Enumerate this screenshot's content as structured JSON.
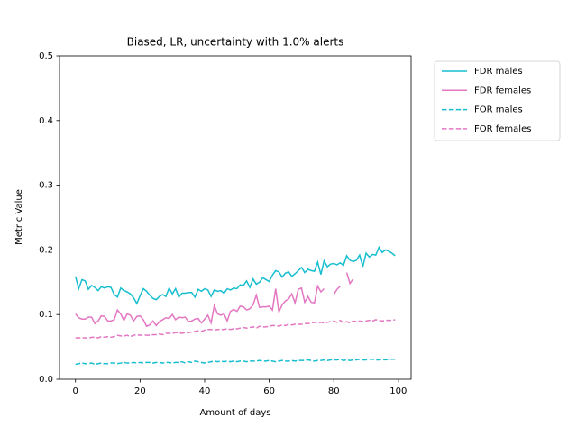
{
  "chart_data": {
    "type": "line",
    "title": "Biased, LR, uncertainty with 1.0% alerts",
    "x_label": "Amount of days",
    "y_label": "Metric Value",
    "x": [
      0,
      1,
      2,
      3,
      4,
      5,
      6,
      7,
      8,
      9,
      10,
      11,
      12,
      13,
      14,
      15,
      16,
      17,
      18,
      19,
      20,
      21,
      22,
      23,
      24,
      25,
      26,
      27,
      28,
      29,
      30,
      31,
      32,
      33,
      34,
      35,
      36,
      37,
      38,
      39,
      40,
      41,
      42,
      43,
      44,
      45,
      46,
      47,
      48,
      49,
      50,
      51,
      52,
      53,
      54,
      55,
      56,
      57,
      58,
      59,
      60,
      61,
      62,
      63,
      64,
      65,
      66,
      67,
      68,
      69,
      70,
      71,
      72,
      73,
      74,
      75,
      76,
      77,
      78,
      79,
      80,
      81,
      82,
      83,
      84,
      85,
      86,
      87,
      88,
      89,
      90,
      91,
      92,
      93,
      94,
      95,
      96,
      97,
      98,
      99
    ],
    "series": [
      {
        "name": "FDR males",
        "color": "#17becf",
        "linestyle": "solid",
        "values": [
          0.159,
          0.14,
          0.154,
          0.152,
          0.139,
          0.145,
          0.142,
          0.137,
          0.143,
          0.141,
          0.143,
          0.142,
          0.131,
          0.127,
          0.141,
          0.137,
          0.135,
          0.132,
          0.126,
          0.117,
          0.129,
          0.14,
          0.136,
          0.13,
          0.125,
          0.123,
          0.128,
          0.131,
          0.128,
          0.141,
          0.132,
          0.14,
          0.127,
          0.133,
          0.133,
          0.134,
          0.134,
          0.127,
          0.139,
          0.136,
          0.14,
          0.138,
          0.128,
          0.138,
          0.136,
          0.137,
          0.133,
          0.14,
          0.138,
          0.141,
          0.14,
          0.146,
          0.145,
          0.152,
          0.142,
          0.155,
          0.147,
          0.15,
          0.157,
          0.154,
          0.151,
          0.161,
          0.168,
          0.166,
          0.158,
          0.164,
          0.166,
          0.159,
          0.163,
          0.168,
          0.173,
          0.165,
          0.17,
          0.168,
          0.167,
          0.181,
          0.162,
          0.183,
          0.174,
          0.178,
          0.179,
          0.177,
          0.18,
          0.176,
          0.191,
          0.184,
          0.182,
          0.184,
          0.192,
          0.174,
          0.195,
          0.189,
          0.193,
          0.192,
          0.204,
          0.196,
          0.2,
          0.198,
          0.195,
          0.191
        ]
      },
      {
        "name": "FDR females",
        "color": "#e377c2",
        "linestyle": "solid",
        "values": [
          0.101,
          0.095,
          0.093,
          0.093,
          0.096,
          0.096,
          0.086,
          0.09,
          0.098,
          0.097,
          0.09,
          0.09,
          0.092,
          0.107,
          0.101,
          0.091,
          0.101,
          0.099,
          0.09,
          0.097,
          0.098,
          0.092,
          0.082,
          0.084,
          0.09,
          0.083,
          0.089,
          0.092,
          0.095,
          0.094,
          0.1,
          0.092,
          0.096,
          0.095,
          0.096,
          0.089,
          0.09,
          0.093,
          0.094,
          0.087,
          0.093,
          0.099,
          0.087,
          0.114,
          0.101,
          0.099,
          0.101,
          0.09,
          0.105,
          0.108,
          0.105,
          0.113,
          0.112,
          0.107,
          0.109,
          0.115,
          0.13,
          0.111,
          0.112,
          0.112,
          0.113,
          0.107,
          0.14,
          0.104,
          0.115,
          0.121,
          0.124,
          0.132,
          0.118,
          0.139,
          0.141,
          0.119,
          0.128,
          0.119,
          0.118,
          0.144,
          0.135,
          0.14,
          null,
          null,
          0.131,
          0.139,
          0.144,
          null,
          0.165,
          0.148,
          0.155,
          null,
          null,
          null,
          null,
          null,
          null,
          null,
          null,
          null,
          null,
          null,
          null,
          null
        ]
      },
      {
        "name": "FOR males",
        "color": "#17becf",
        "linestyle": "dashed",
        "values": [
          0.023,
          0.024,
          0.025,
          0.024,
          0.024,
          0.025,
          0.023,
          0.024,
          0.025,
          0.024,
          0.024,
          0.025,
          0.025,
          0.024,
          0.025,
          0.026,
          0.025,
          0.025,
          0.026,
          0.025,
          0.026,
          0.025,
          0.026,
          0.026,
          0.025,
          0.026,
          0.026,
          0.025,
          0.026,
          0.026,
          0.025,
          0.026,
          0.026,
          0.027,
          0.025,
          0.027,
          0.026,
          0.028,
          0.027,
          0.026,
          0.025,
          0.026,
          0.027,
          0.028,
          0.027,
          0.028,
          0.027,
          0.028,
          0.027,
          0.028,
          0.027,
          0.028,
          0.028,
          0.027,
          0.028,
          0.028,
          0.028,
          0.029,
          0.028,
          0.028,
          0.029,
          0.028,
          0.027,
          0.028,
          0.029,
          0.028,
          0.028,
          0.029,
          0.028,
          0.029,
          0.029,
          0.029,
          0.03,
          0.029,
          0.028,
          0.029,
          0.029,
          0.03,
          0.029,
          0.03,
          0.03,
          0.03,
          0.031,
          0.029,
          0.03,
          0.029,
          0.03,
          0.03,
          0.031,
          0.03,
          0.03,
          0.031,
          0.031,
          0.03,
          0.03,
          0.031,
          0.03,
          0.031,
          0.031,
          0.031
        ]
      },
      {
        "name": "FOR females",
        "color": "#e377c2",
        "linestyle": "dashed",
        "values": [
          0.064,
          0.064,
          0.064,
          0.064,
          0.063,
          0.065,
          0.065,
          0.064,
          0.066,
          0.065,
          0.066,
          0.065,
          0.066,
          0.068,
          0.067,
          0.067,
          0.068,
          0.066,
          0.068,
          0.069,
          0.068,
          0.069,
          0.068,
          0.068,
          0.069,
          0.069,
          0.07,
          0.069,
          0.071,
          0.071,
          0.071,
          0.072,
          0.072,
          0.071,
          0.072,
          0.072,
          0.073,
          0.074,
          0.075,
          0.074,
          0.076,
          0.077,
          0.077,
          0.076,
          0.077,
          0.077,
          0.077,
          0.078,
          0.077,
          0.078,
          0.078,
          0.079,
          0.08,
          0.079,
          0.08,
          0.081,
          0.079,
          0.082,
          0.081,
          0.081,
          0.082,
          0.083,
          0.083,
          0.082,
          0.084,
          0.083,
          0.085,
          0.084,
          0.085,
          0.085,
          0.085,
          0.086,
          0.086,
          0.087,
          0.088,
          0.087,
          0.088,
          0.087,
          0.088,
          0.089,
          0.09,
          0.088,
          0.091,
          0.087,
          0.089,
          0.087,
          0.09,
          0.089,
          0.09,
          0.089,
          0.09,
          0.091,
          0.09,
          0.092,
          0.091,
          0.09,
          0.091,
          0.091,
          0.091,
          0.092
        ]
      }
    ],
    "xlim": [
      -4.95,
      103.95
    ],
    "xticks": [
      0,
      20,
      40,
      60,
      80,
      100
    ],
    "ylim": [
      0,
      0.5
    ],
    "yticks": [
      {
        "value": 0,
        "label": "0.0"
      },
      {
        "value": 0.1,
        "label": "0.1"
      },
      {
        "value": 0.2,
        "label": "0.2"
      },
      {
        "value": 0.3,
        "label": "0.3"
      },
      {
        "value": 0.4,
        "label": "0.4"
      },
      {
        "value": 0.5,
        "label": "0.5"
      }
    ],
    "legend": "outside-upper-right",
    "grid": false
  }
}
